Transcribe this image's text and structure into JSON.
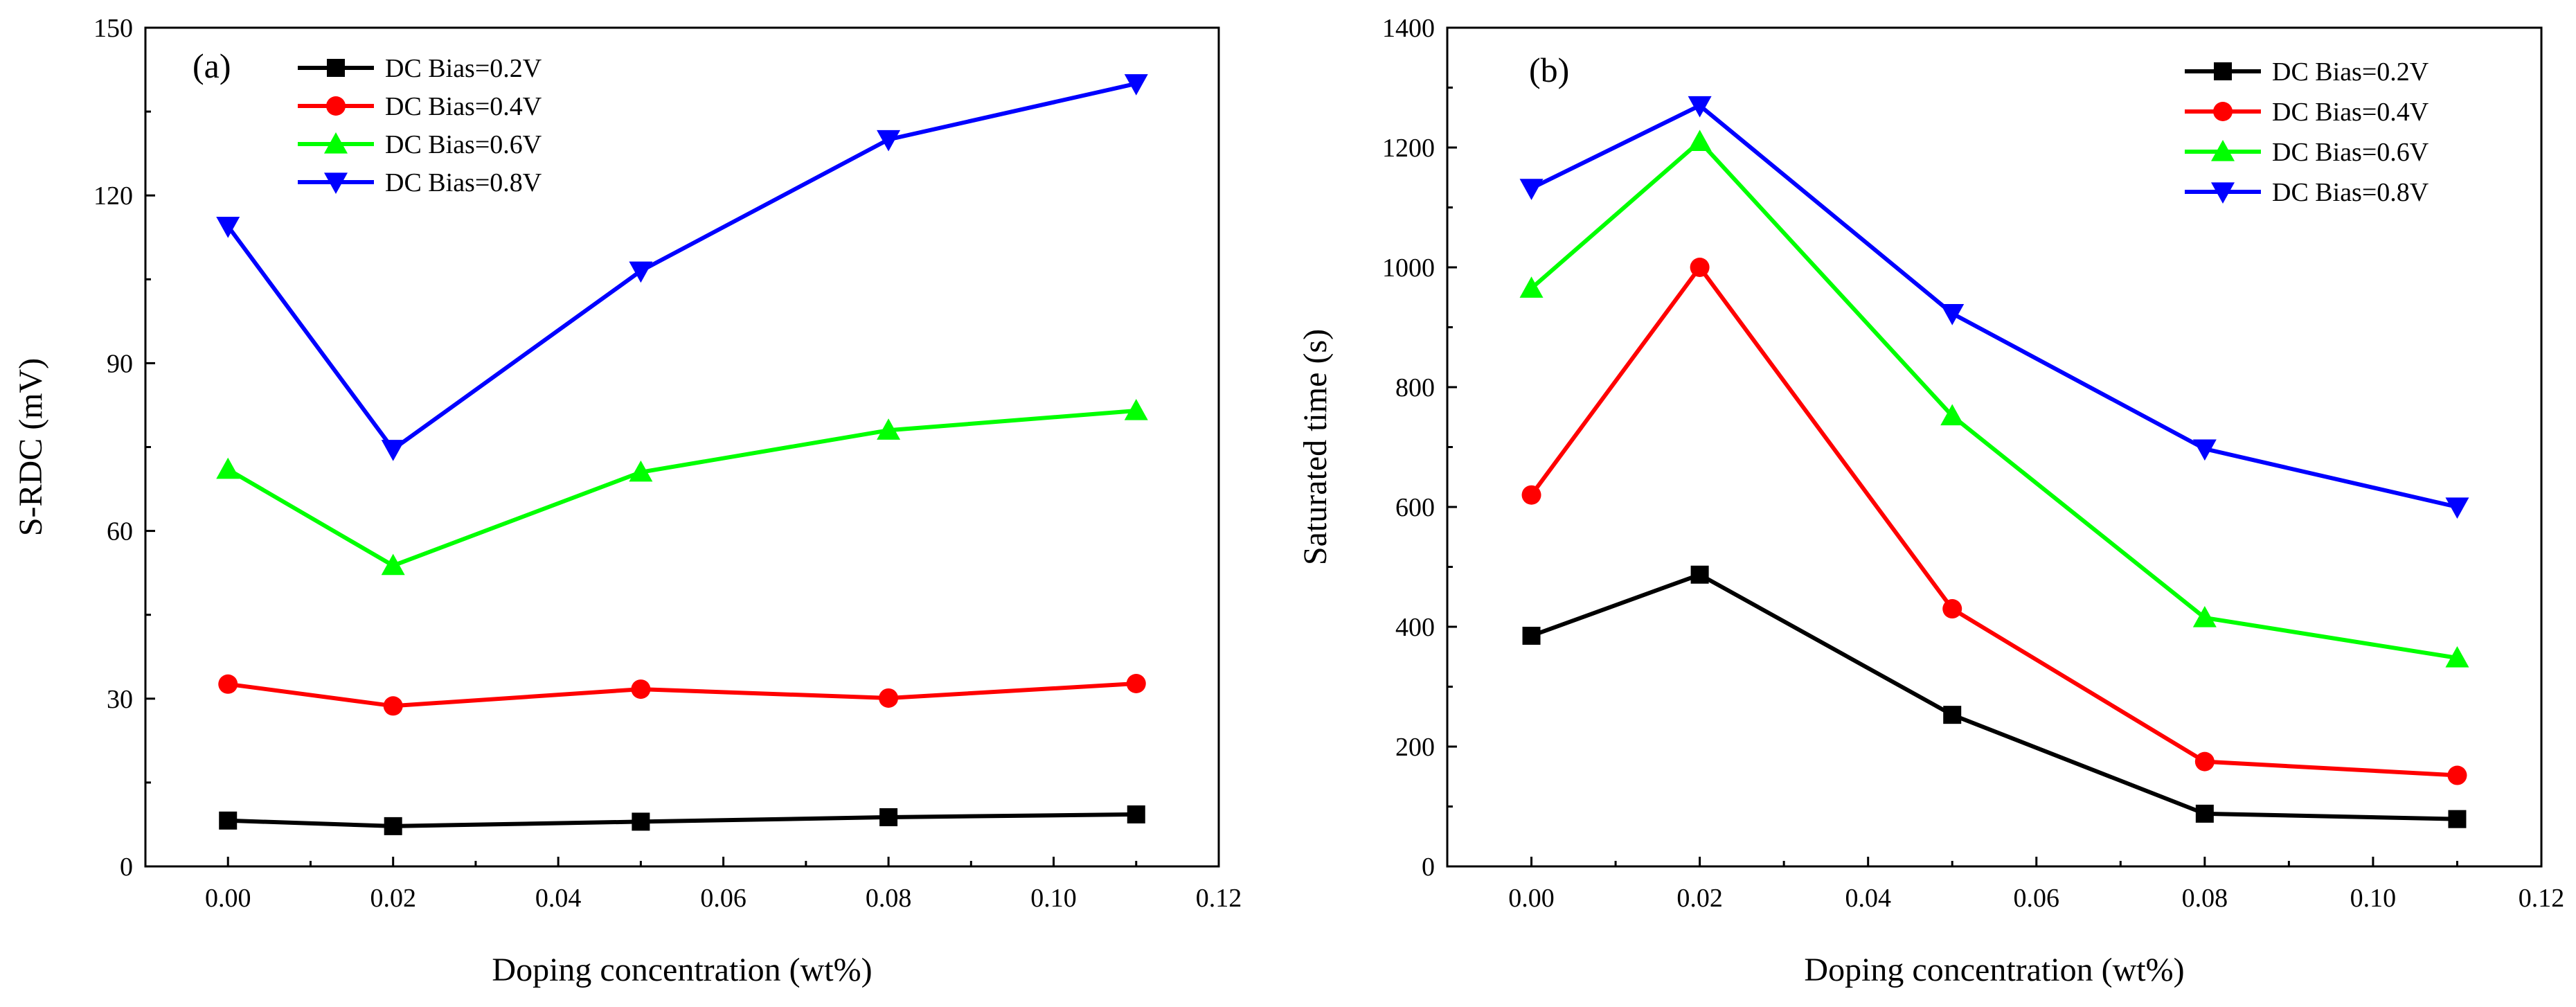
{
  "chart_data": [
    {
      "type": "line",
      "panel_label": "(a)",
      "title": "",
      "xlabel": "Doping concentration (wt%)",
      "ylabel": "S-RDC (mV)",
      "xlim": [
        -0.01,
        0.12
      ],
      "ylim": [
        0,
        150
      ],
      "xticks": [
        0.0,
        0.02,
        0.04,
        0.06,
        0.08,
        0.1,
        0.12
      ],
      "xtick_labels": [
        "0.00",
        "0.02",
        "0.04",
        "0.06",
        "0.08",
        "0.10",
        "0.12"
      ],
      "yticks": [
        0,
        30,
        60,
        90,
        120,
        150
      ],
      "ytick_labels": [
        "0",
        "30",
        "60",
        "90",
        "120",
        "150"
      ],
      "grid": false,
      "legend_position": "top-left",
      "x": [
        0.0,
        0.02,
        0.05,
        0.08,
        0.11
      ],
      "series": [
        {
          "name": "DC Bias=0.2V",
          "color": "#000000",
          "marker": "square",
          "values": [
            8.2,
            7.2,
            8.0,
            8.8,
            9.3
          ]
        },
        {
          "name": "DC Bias=0.4V",
          "color": "#ff0000",
          "marker": "circle",
          "values": [
            32.6,
            28.7,
            31.7,
            30.1,
            32.7
          ]
        },
        {
          "name": "DC Bias=0.6V",
          "color": "#00ff00",
          "marker": "triangle-up",
          "values": [
            71.0,
            53.8,
            70.5,
            78.0,
            81.5
          ]
        },
        {
          "name": "DC Bias=0.8V",
          "color": "#0000ff",
          "marker": "triangle-down",
          "values": [
            114.5,
            74.6,
            106.5,
            130.0,
            140.0
          ]
        }
      ]
    },
    {
      "type": "line",
      "panel_label": "(b)",
      "title": "",
      "xlabel": "Doping concentration (wt%)",
      "ylabel": "Saturated time (s)",
      "xlim": [
        -0.01,
        0.12
      ],
      "ylim": [
        0,
        1400
      ],
      "xticks": [
        0.0,
        0.02,
        0.04,
        0.06,
        0.08,
        0.1,
        0.12
      ],
      "xtick_labels": [
        "0.00",
        "0.02",
        "0.04",
        "0.06",
        "0.08",
        "0.10",
        "0.12"
      ],
      "yticks": [
        0,
        200,
        400,
        600,
        800,
        1000,
        1200,
        1400
      ],
      "ytick_labels": [
        "0",
        "200",
        "400",
        "600",
        "800",
        "1000",
        "1200",
        "1400"
      ],
      "grid": false,
      "legend_position": "top-right",
      "x": [
        0.0,
        0.02,
        0.05,
        0.08,
        0.11
      ],
      "series": [
        {
          "name": "DC Bias=0.2V",
          "color": "#000000",
          "marker": "square",
          "values": [
            385,
            487,
            253,
            88,
            79
          ]
        },
        {
          "name": "DC Bias=0.4V",
          "color": "#ff0000",
          "marker": "circle",
          "values": [
            620,
            1000,
            430,
            175,
            152
          ]
        },
        {
          "name": "DC Bias=0.6V",
          "color": "#00ff00",
          "marker": "triangle-up",
          "values": [
            965,
            1210,
            752,
            415,
            348
          ]
        },
        {
          "name": "DC Bias=0.8V",
          "color": "#0000ff",
          "marker": "triangle-down",
          "values": [
            1132,
            1270,
            923,
            697,
            600
          ]
        }
      ]
    }
  ]
}
